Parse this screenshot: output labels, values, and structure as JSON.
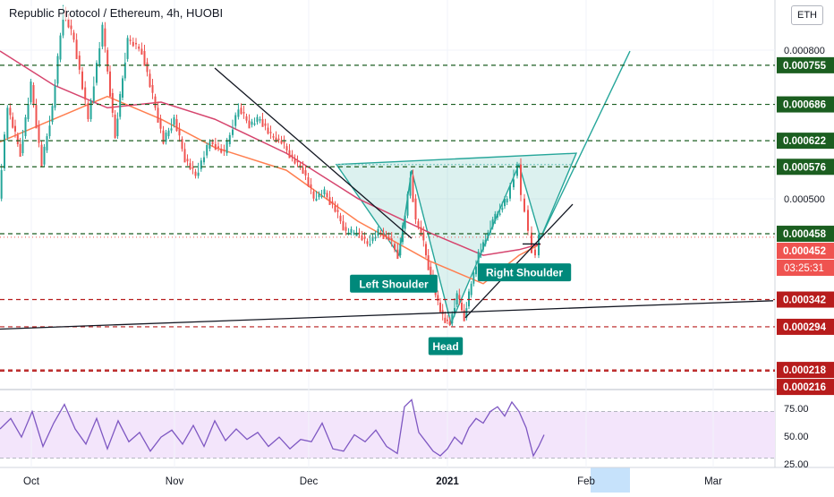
{
  "title": "Republic Protocol / Ethereum, 4h, HUOBI",
  "currency_badge": "ETH",
  "chart_data": [
    {
      "type": "line",
      "name": "price",
      "y_scale": "linear",
      "ylim": [
        0.000185,
        0.00087
      ],
      "x_ticks": [
        "Oct",
        "Nov",
        "Dec",
        "2021",
        "Feb",
        "Mar"
      ],
      "y_ticks": [
        "0.000800",
        "0.000500"
      ],
      "price_series": [
        [
          0,
          0.00052
        ],
        [
          5,
          0.00068
        ],
        [
          12,
          0.0006
        ],
        [
          18,
          0.00072
        ],
        [
          24,
          0.00058
        ],
        [
          30,
          0.00068
        ],
        [
          36,
          0.00085
        ],
        [
          42,
          0.0008
        ],
        [
          50,
          0.00066
        ],
        [
          58,
          0.00082
        ],
        [
          65,
          0.00063
        ],
        [
          72,
          0.0008
        ],
        [
          80,
          0.00078
        ],
        [
          86,
          0.0007
        ],
        [
          92,
          0.00062
        ],
        [
          98,
          0.00066
        ],
        [
          104,
          0.00059
        ],
        [
          110,
          0.00056
        ],
        [
          118,
          0.00062
        ],
        [
          126,
          0.0006
        ],
        [
          134,
          0.00068
        ],
        [
          140,
          0.00065
        ],
        [
          146,
          0.00066
        ],
        [
          152,
          0.00063
        ],
        [
          158,
          0.00062
        ],
        [
          164,
          0.00059
        ],
        [
          170,
          0.00057
        ],
        [
          176,
          0.00052
        ],
        [
          182,
          0.00053
        ],
        [
          188,
          0.0005
        ],
        [
          194,
          0.00046
        ],
        [
          200,
          0.00046
        ],
        [
          206,
          0.00044
        ],
        [
          212,
          0.00046
        ],
        [
          218,
          0.00045
        ],
        [
          223,
          0.00042
        ],
        [
          227,
          0.00049
        ],
        [
          230,
          0.00056
        ],
        [
          233,
          0.00048
        ],
        [
          236,
          0.00046
        ],
        [
          240,
          0.0004
        ],
        [
          244,
          0.00035
        ],
        [
          248,
          0.00031
        ],
        [
          252,
          0.0003
        ],
        [
          256,
          0.00035
        ],
        [
          260,
          0.00031
        ],
        [
          264,
          0.00037
        ],
        [
          268,
          0.00042
        ],
        [
          272,
          0.00045
        ],
        [
          276,
          0.00048
        ],
        [
          280,
          0.0005
        ],
        [
          284,
          0.00052
        ],
        [
          286,
          0.00054
        ],
        [
          288,
          0.00056
        ],
        [
          290,
          0.00058
        ],
        [
          292,
          0.00052
        ],
        [
          294,
          0.0005
        ],
        [
          296,
          0.00046
        ],
        [
          298,
          0.00043
        ],
        [
          300,
          0.00042
        ],
        [
          302,
          0.00045
        ]
      ],
      "moving_averages": [
        {
          "color": "#ff7f50",
          "points": [
            [
              0,
              0.00062
            ],
            [
              30,
              0.00066
            ],
            [
              60,
              0.0007
            ],
            [
              90,
              0.00066
            ],
            [
              120,
              0.00061
            ],
            [
              160,
              0.00057
            ],
            [
              200,
              0.00048
            ],
            [
              240,
              0.00041
            ],
            [
              270,
              0.00037
            ],
            [
              290,
              0.00042
            ],
            [
              302,
              0.00044
            ]
          ]
        },
        {
          "color": "#d6456e",
          "points": [
            [
              0,
              0.00078
            ],
            [
              30,
              0.00072
            ],
            [
              60,
              0.00068
            ],
            [
              90,
              0.00069
            ],
            [
              120,
              0.00066
            ],
            [
              160,
              0.0006
            ],
            [
              200,
              0.00052
            ],
            [
              240,
              0.00046
            ],
            [
              270,
              0.00042
            ],
            [
              290,
              0.00043
            ],
            [
              302,
              0.00044
            ]
          ]
        }
      ],
      "pattern": {
        "name": "inverse head and shoulders",
        "points": [
          [
            188,
            0.00058
          ],
          [
            223,
            0.00042
          ],
          [
            230,
            0.00057
          ],
          [
            252,
            0.0003
          ],
          [
            290,
            0.00058
          ],
          [
            302,
            0.00045
          ],
          [
            322,
            0.0006
          ]
        ],
        "neckline": [
          [
            188,
            0.00058
          ],
          [
            320,
            0.00058
          ]
        ]
      },
      "projection": {
        "from": [
          302,
          0.00045
        ],
        "to": [
          352,
          0.00078
        ]
      },
      "trendlines": [
        {
          "from": [
            0,
            0.00029
          ],
          "to": [
            432,
            0.00034
          ]
        },
        {
          "from": [
            260,
            0.00031
          ],
          "to": [
            320,
            0.00051
          ]
        },
        {
          "from": [
            120,
            0.00075
          ],
          "to": [
            230,
            0.00045
          ]
        },
        {
          "from": [
            292,
            0.00044
          ],
          "to": [
            302,
            0.00044
          ]
        }
      ],
      "annotations": [
        {
          "text": "Left Shoulder",
          "anchor": [
            220,
            0.00037
          ]
        },
        {
          "text": "Head",
          "anchor": [
            249,
            0.00026
          ]
        },
        {
          "text": "Right Shoulder",
          "anchor": [
            293,
            0.00039
          ]
        }
      ],
      "levels": [
        {
          "value": 0.000755,
          "label": "0.000755",
          "color": "#1b5e20"
        },
        {
          "value": 0.000686,
          "label": "0.000686",
          "color": "#1b5e20"
        },
        {
          "value": 0.000622,
          "label": "0.000622",
          "color": "#1b5e20"
        },
        {
          "value": 0.000576,
          "label": "0.000576",
          "color": "#1b5e20"
        },
        {
          "value": 0.000458,
          "label": "0.000458",
          "color": "#1b5e20"
        },
        {
          "value": 0.000342,
          "label": "0.000342",
          "color": "#b71c1c"
        },
        {
          "value": 0.000294,
          "label": "0.000294",
          "color": "#b71c1c"
        },
        {
          "value": 0.000218,
          "label": "0.000218",
          "color": "#b71c1c"
        },
        {
          "value": 0.000216,
          "label": "0.000216",
          "color": "#b71c1c"
        }
      ],
      "last_price": {
        "value": 0.000452,
        "label": "0.000452",
        "countdown": "03:25:31",
        "color": "#ef5350"
      }
    },
    {
      "type": "line",
      "name": "RSI",
      "ylim": [
        22,
        88
      ],
      "y_ticks": [
        "75.00",
        "50.00",
        "25.00"
      ],
      "band": [
        30,
        70
      ],
      "values": [
        [
          0,
          55
        ],
        [
          6,
          64
        ],
        [
          12,
          48
        ],
        [
          18,
          70
        ],
        [
          24,
          40
        ],
        [
          30,
          60
        ],
        [
          36,
          76
        ],
        [
          42,
          55
        ],
        [
          48,
          42
        ],
        [
          54,
          64
        ],
        [
          60,
          38
        ],
        [
          66,
          62
        ],
        [
          72,
          44
        ],
        [
          78,
          52
        ],
        [
          84,
          36
        ],
        [
          90,
          48
        ],
        [
          96,
          54
        ],
        [
          102,
          42
        ],
        [
          108,
          58
        ],
        [
          114,
          40
        ],
        [
          120,
          62
        ],
        [
          126,
          45
        ],
        [
          132,
          55
        ],
        [
          138,
          46
        ],
        [
          144,
          52
        ],
        [
          150,
          40
        ],
        [
          156,
          48
        ],
        [
          162,
          38
        ],
        [
          168,
          46
        ],
        [
          174,
          44
        ],
        [
          180,
          60
        ],
        [
          186,
          38
        ],
        [
          192,
          36
        ],
        [
          198,
          50
        ],
        [
          204,
          44
        ],
        [
          210,
          54
        ],
        [
          216,
          40
        ],
        [
          222,
          34
        ],
        [
          226,
          74
        ],
        [
          230,
          80
        ],
        [
          234,
          52
        ],
        [
          238,
          44
        ],
        [
          242,
          36
        ],
        [
          246,
          32
        ],
        [
          250,
          38
        ],
        [
          254,
          48
        ],
        [
          258,
          42
        ],
        [
          262,
          56
        ],
        [
          266,
          64
        ],
        [
          270,
          60
        ],
        [
          274,
          70
        ],
        [
          278,
          74
        ],
        [
          282,
          66
        ],
        [
          286,
          78
        ],
        [
          290,
          70
        ],
        [
          294,
          56
        ],
        [
          298,
          32
        ],
        [
          301,
          40
        ],
        [
          304,
          50
        ]
      ]
    }
  ]
}
